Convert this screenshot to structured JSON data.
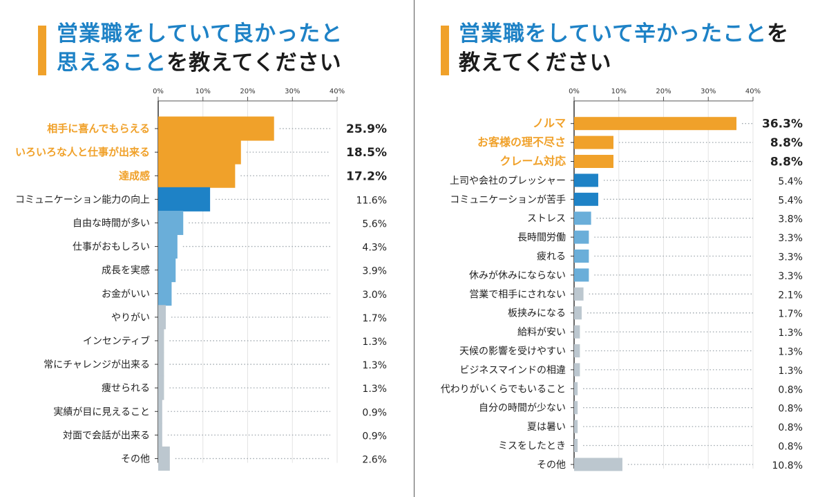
{
  "left_panel": {
    "title_line1_highlight": "営業職をしていて良かったと",
    "title_line2_highlight": "思えること",
    "title_line2_rest": "を教えてください"
  },
  "right_panel": {
    "title_line1_highlight": "営業職をしていて辛かったこと",
    "title_line1_rest": "を",
    "title_line2_rest": "教えてください"
  },
  "colors": {
    "orange": "#F0A12A",
    "blue": "#1E82C6",
    "light_blue": "#6AAED9",
    "gray": "#BCC7CF",
    "title_accent": "#1E82C6"
  },
  "chart_data": [
    {
      "type": "bar",
      "orientation": "horizontal",
      "title": "営業職をしていて良かったと思えることを教えてください",
      "xlim": [
        0,
        40
      ],
      "xticks": [
        "0%",
        "10%",
        "20%",
        "30%",
        "40%"
      ],
      "grid": true,
      "categories": [
        "相手に喜んでもらえる",
        "いろいろな人と仕事が出来る",
        "達成感",
        "コミュニケーション能力の向上",
        "自由な時間が多い",
        "仕事がおもしろい",
        "成長を実感",
        "お金がいい",
        "やりがい",
        "インセンティブ",
        "常にチャレンジが出来る",
        "痩せられる",
        "実績が目に見えること",
        "対面で会話が出来る",
        "その他"
      ],
      "values": [
        25.9,
        18.5,
        17.2,
        11.6,
        5.6,
        4.3,
        3.9,
        3.0,
        1.7,
        1.3,
        1.3,
        1.3,
        0.9,
        0.9,
        2.6
      ],
      "value_labels": [
        "25.9%",
        "18.5%",
        "17.2%",
        "11.6%",
        "5.6%",
        "4.3%",
        "3.9%",
        "3.0%",
        "1.7%",
        "1.3%",
        "1.3%",
        "1.3%",
        "0.9%",
        "0.9%",
        "2.6%"
      ],
      "bar_colors": [
        "orange",
        "orange",
        "orange",
        "blue",
        "light_blue",
        "light_blue",
        "light_blue",
        "light_blue",
        "gray",
        "gray",
        "gray",
        "gray",
        "gray",
        "gray",
        "gray"
      ]
    },
    {
      "type": "bar",
      "orientation": "horizontal",
      "title": "営業職をしていて辛かったことを教えてください",
      "xlim": [
        0,
        40
      ],
      "xticks": [
        "0%",
        "10%",
        "20%",
        "30%",
        "40%"
      ],
      "grid": true,
      "categories": [
        "ノルマ",
        "お客様の理不尽さ",
        "クレーム対応",
        "上司や会社のプレッシャー",
        "コミュニケーションが苦手",
        "ストレス",
        "長時間労働",
        "疲れる",
        "休みが休みにならない",
        "営業で相手にされない",
        "板挟みになる",
        "給料が安い",
        "天候の影響を受けやすい",
        "ビジネスマインドの相違",
        "代わりがいくらでもいること",
        "自分の時間が少ない",
        "夏は暑い",
        "ミスをしたとき",
        "その他"
      ],
      "values": [
        36.3,
        8.8,
        8.8,
        5.4,
        5.4,
        3.8,
        3.3,
        3.3,
        3.3,
        2.1,
        1.7,
        1.3,
        1.3,
        1.3,
        0.8,
        0.8,
        0.8,
        0.8,
        10.8
      ],
      "value_labels": [
        "36.3%",
        "8.8%",
        "8.8%",
        "5.4%",
        "5.4%",
        "3.8%",
        "3.3%",
        "3.3%",
        "3.3%",
        "2.1%",
        "1.7%",
        "1.3%",
        "1.3%",
        "1.3%",
        "0.8%",
        "0.8%",
        "0.8%",
        "0.8%",
        "10.8%"
      ],
      "bar_colors": [
        "orange",
        "orange",
        "orange",
        "blue",
        "blue",
        "light_blue",
        "light_blue",
        "light_blue",
        "light_blue",
        "gray",
        "gray",
        "gray",
        "gray",
        "gray",
        "gray",
        "gray",
        "gray",
        "gray",
        "gray"
      ]
    }
  ]
}
